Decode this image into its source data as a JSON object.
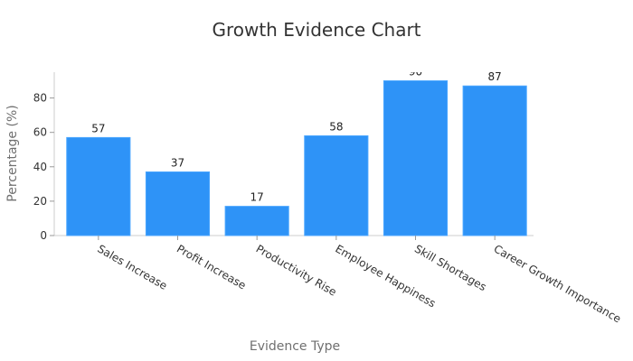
{
  "chart_data": {
    "type": "bar",
    "title": "Growth Evidence Chart",
    "xlabel": "Evidence Type",
    "ylabel": "Percentage (%)",
    "categories": [
      "Sales Increase",
      "Profit Increase",
      "Productivity Rise",
      "Employee Happiness",
      "Skill Shortages",
      "Career Growth Importance"
    ],
    "values": [
      57,
      37,
      17,
      58,
      90,
      87
    ],
    "ylim": [
      0,
      95
    ],
    "yticks": [
      0,
      20,
      40,
      60,
      80
    ],
    "bar_color": "#2e93f7",
    "grid": false,
    "legend": "none"
  }
}
